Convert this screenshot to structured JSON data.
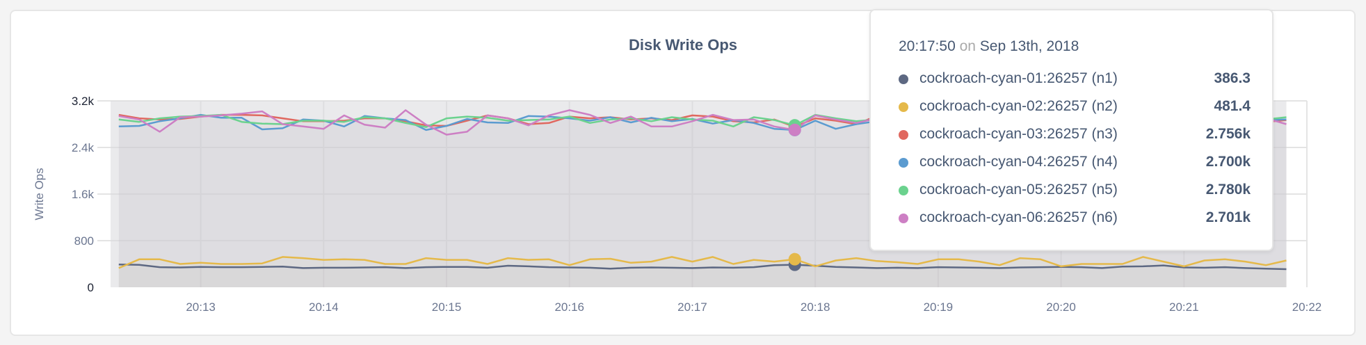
{
  "chart_data": {
    "type": "line",
    "title": "Disk Write Ops",
    "ylabel": "Write Ops",
    "xlabel": "",
    "ylim": [
      0,
      3200
    ],
    "yticks": [
      "0",
      "800",
      "1.6k",
      "2.4k",
      "3.2k"
    ],
    "ytick_values": [
      0,
      800,
      1600,
      2400,
      3200
    ],
    "xlim": [
      "20:12:16",
      "20:22:00"
    ],
    "xticks": [
      "20:13",
      "20:14",
      "20:15",
      "20:16",
      "20:17",
      "20:18",
      "20:19",
      "20:20",
      "20:21",
      "20:22"
    ],
    "x_start": "20:12:20",
    "x_step_seconds": 10,
    "grid": true,
    "area_fill": true,
    "series": [
      {
        "name": "cockroach-cyan-01:26257 (n1)",
        "color": "#5d6882",
        "values": [
          390,
          385,
          345,
          340,
          350,
          345,
          345,
          350,
          355,
          330,
          335,
          335,
          340,
          345,
          330,
          345,
          350,
          350,
          335,
          370,
          360,
          345,
          340,
          335,
          320,
          335,
          340,
          335,
          330,
          340,
          335,
          345,
          380,
          386.3,
          370,
          350,
          340,
          330,
          335,
          330,
          345,
          340,
          335,
          330,
          340,
          345,
          350,
          345,
          330,
          355,
          360,
          375,
          340,
          335,
          345,
          330,
          320,
          310
        ]
      },
      {
        "name": "cockroach-cyan-02:26257 (n2)",
        "color": "#e5b94a",
        "values": [
          330,
          480,
          480,
          400,
          420,
          400,
          400,
          410,
          520,
          500,
          470,
          480,
          470,
          400,
          400,
          500,
          470,
          470,
          400,
          500,
          470,
          480,
          380,
          480,
          490,
          420,
          440,
          520,
          440,
          520,
          400,
          470,
          440,
          481.4,
          360,
          460,
          500,
          450,
          430,
          400,
          480,
          480,
          440,
          380,
          500,
          480,
          360,
          400,
          400,
          400,
          520,
          440,
          360,
          460,
          480,
          440,
          380,
          460
        ]
      },
      {
        "name": "cockroach-cyan-03:26257 (n3)",
        "color": "#e0685f",
        "values": [
          2960,
          2900,
          2880,
          2890,
          2930,
          2960,
          2960,
          2950,
          2900,
          2850,
          2850,
          2860,
          2900,
          2900,
          2850,
          2780,
          2770,
          2860,
          2950,
          2900,
          2800,
          2820,
          2930,
          2900,
          2920,
          2880,
          2900,
          2870,
          2950,
          2930,
          2850,
          2830,
          2880,
          2756,
          2900,
          2860,
          2800,
          2940,
          2900,
          2880,
          2830,
          2850,
          2820,
          2870,
          2900,
          2840,
          2810,
          2860,
          2930,
          2900,
          2880,
          2870,
          2850,
          2900,
          2860,
          2880,
          2840,
          2870
        ]
      },
      {
        "name": "cockroach-cyan-04:26257 (n4)",
        "color": "#5b9bd0",
        "values": [
          2760,
          2770,
          2850,
          2900,
          2960,
          2910,
          2910,
          2710,
          2730,
          2880,
          2860,
          2760,
          2940,
          2900,
          2870,
          2700,
          2770,
          2890,
          2830,
          2820,
          2940,
          2930,
          2900,
          2860,
          2920,
          2830,
          2910,
          2850,
          2890,
          2810,
          2870,
          2820,
          2720,
          2700,
          2860,
          2720,
          2800,
          2850,
          2790,
          2830,
          2900,
          2850,
          2830,
          2880,
          2790,
          2860,
          2920,
          2870,
          2800,
          2850,
          2830,
          2880,
          2900,
          2860,
          2840,
          2900,
          2870,
          2880
        ]
      },
      {
        "name": "cockroach-cyan-05:26257 (n5)",
        "color": "#6bd28e",
        "values": [
          2880,
          2840,
          2900,
          2930,
          2940,
          2960,
          2840,
          2810,
          2800,
          2860,
          2860,
          2840,
          2920,
          2900,
          2820,
          2750,
          2900,
          2930,
          2910,
          2860,
          2870,
          2880,
          2930,
          2820,
          2880,
          2900,
          2850,
          2920,
          2880,
          2860,
          2760,
          2920,
          2870,
          2780,
          2960,
          2900,
          2850,
          2880,
          2900,
          2920,
          2860,
          2890,
          2850,
          2900,
          2870,
          2880,
          2900,
          2850,
          2880,
          2910,
          2870,
          2890,
          2920,
          2880,
          2860,
          2900,
          2880,
          2920
        ]
      },
      {
        "name": "cockroach-cyan-06:26257 (n6)",
        "color": "#cd7fc4",
        "values": [
          2940,
          2880,
          2670,
          2920,
          2930,
          2950,
          2980,
          3020,
          2800,
          2760,
          2720,
          2950,
          2790,
          2740,
          3040,
          2790,
          2620,
          2670,
          2950,
          2900,
          2780,
          2950,
          3040,
          2960,
          2820,
          2930,
          2760,
          2760,
          2850,
          2960,
          2870,
          2880,
          2760,
          2701,
          2950,
          2880,
          2820,
          2900,
          2960,
          2860,
          2900,
          2850,
          2880,
          2820,
          2930,
          2870,
          2860,
          2900,
          2880,
          2840,
          2910,
          2870,
          2850,
          2900,
          2880,
          2870,
          2900,
          2800
        ]
      }
    ]
  },
  "tooltip": {
    "time": "20:17:50",
    "on": "on",
    "date": "Sep 13th, 2018",
    "hover_index": 33,
    "rows": [
      {
        "label": "cockroach-cyan-01:26257 (n1)",
        "value": "386.3",
        "color": "#5d6882"
      },
      {
        "label": "cockroach-cyan-02:26257 (n2)",
        "value": "481.4",
        "color": "#e5b94a"
      },
      {
        "label": "cockroach-cyan-03:26257 (n3)",
        "value": "2.756k",
        "color": "#e0685f"
      },
      {
        "label": "cockroach-cyan-04:26257 (n4)",
        "value": "2.700k",
        "color": "#5b9bd0"
      },
      {
        "label": "cockroach-cyan-05:26257 (n5)",
        "value": "2.780k",
        "color": "#6bd28e"
      },
      {
        "label": "cockroach-cyan-06:26257 (n6)",
        "value": "2.701k",
        "color": "#cd7fc4"
      }
    ]
  }
}
